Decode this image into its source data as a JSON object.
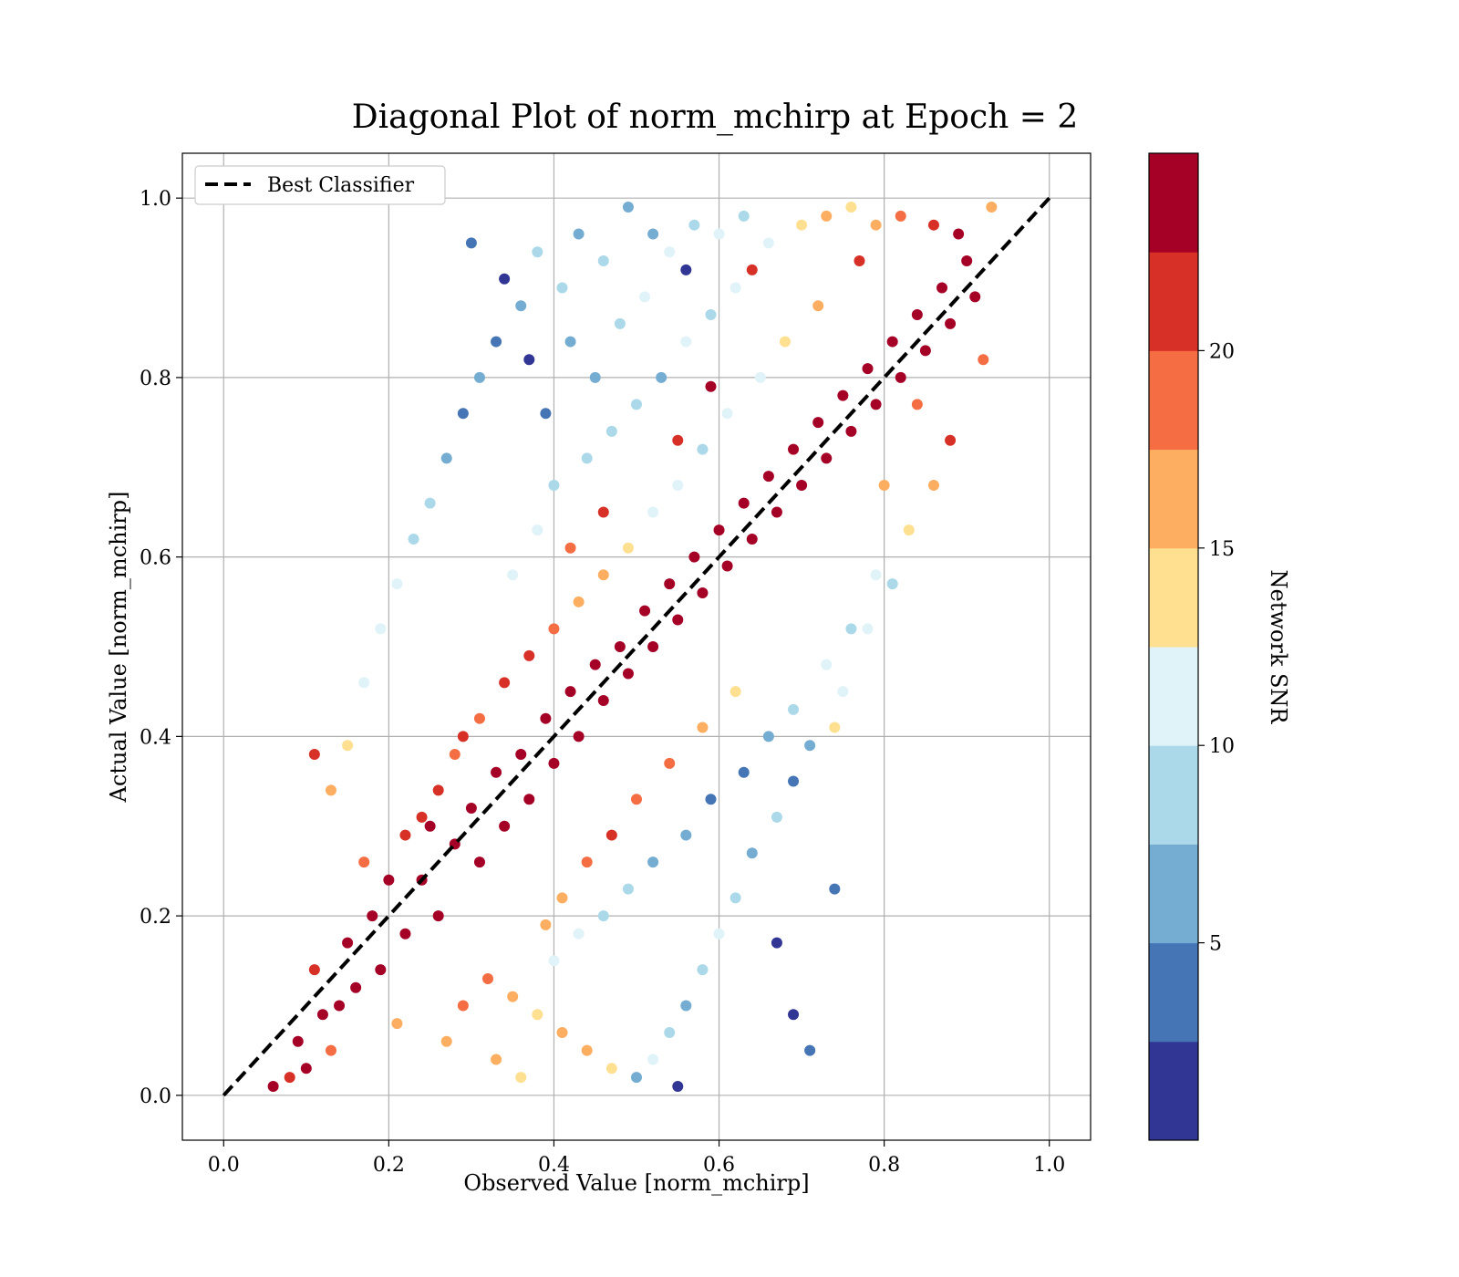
{
  "chart_data": {
    "type": "scatter",
    "title": "Diagonal Plot of norm_mchirp at Epoch = 2",
    "xlabel": "Observed Value [norm_mchirp]",
    "ylabel": "Actual Value [norm_mchirp]",
    "xlim": [
      -0.05,
      1.05
    ],
    "ylim": [
      -0.05,
      1.05
    ],
    "xticks": [
      "0.0",
      "0.2",
      "0.4",
      "0.6",
      "0.8",
      "1.0"
    ],
    "yticks": [
      "0.0",
      "0.2",
      "0.4",
      "0.6",
      "0.8",
      "1.0"
    ],
    "grid": true,
    "legend": {
      "placement": "upper-left",
      "entries": [
        "Best Classifier"
      ]
    },
    "reference_line": {
      "name": "Best Classifier",
      "style": "dashed",
      "color": "#000000",
      "x": [
        0,
        1
      ],
      "y": [
        0,
        1
      ]
    },
    "colorbar": {
      "label": "Network SNR",
      "range": [
        0,
        25
      ],
      "ticks": [
        "5",
        "10",
        "15",
        "20"
      ],
      "colors": [
        "#313695",
        "#4575b4",
        "#74add1",
        "#abd9e9",
        "#e0f3f8",
        "#fee090",
        "#fdae61",
        "#f46d43",
        "#d73027",
        "#a50026"
      ]
    },
    "points": [
      [
        0.06,
        0.01,
        24
      ],
      [
        0.08,
        0.02,
        22
      ],
      [
        0.09,
        0.06,
        24
      ],
      [
        0.1,
        0.03,
        23
      ],
      [
        0.12,
        0.09,
        24
      ],
      [
        0.11,
        0.14,
        20
      ],
      [
        0.14,
        0.1,
        24
      ],
      [
        0.15,
        0.17,
        24
      ],
      [
        0.13,
        0.05,
        18
      ],
      [
        0.16,
        0.12,
        24
      ],
      [
        0.18,
        0.2,
        24
      ],
      [
        0.19,
        0.14,
        24
      ],
      [
        0.2,
        0.24,
        24
      ],
      [
        0.17,
        0.26,
        18
      ],
      [
        0.22,
        0.18,
        24
      ],
      [
        0.24,
        0.24,
        24
      ],
      [
        0.25,
        0.3,
        24
      ],
      [
        0.21,
        0.08,
        16
      ],
      [
        0.26,
        0.2,
        24
      ],
      [
        0.28,
        0.28,
        24
      ],
      [
        0.3,
        0.32,
        24
      ],
      [
        0.31,
        0.26,
        24
      ],
      [
        0.33,
        0.36,
        24
      ],
      [
        0.29,
        0.4,
        20
      ],
      [
        0.34,
        0.3,
        24
      ],
      [
        0.36,
        0.38,
        24
      ],
      [
        0.37,
        0.33,
        24
      ],
      [
        0.39,
        0.42,
        24
      ],
      [
        0.4,
        0.37,
        24
      ],
      [
        0.42,
        0.45,
        24
      ],
      [
        0.43,
        0.4,
        24
      ],
      [
        0.45,
        0.48,
        24
      ],
      [
        0.46,
        0.44,
        24
      ],
      [
        0.48,
        0.5,
        24
      ],
      [
        0.49,
        0.47,
        24
      ],
      [
        0.51,
        0.54,
        24
      ],
      [
        0.52,
        0.5,
        24
      ],
      [
        0.54,
        0.57,
        24
      ],
      [
        0.55,
        0.53,
        24
      ],
      [
        0.57,
        0.6,
        24
      ],
      [
        0.58,
        0.56,
        24
      ],
      [
        0.6,
        0.63,
        24
      ],
      [
        0.61,
        0.59,
        24
      ],
      [
        0.63,
        0.66,
        24
      ],
      [
        0.64,
        0.62,
        24
      ],
      [
        0.66,
        0.69,
        24
      ],
      [
        0.67,
        0.65,
        24
      ],
      [
        0.69,
        0.72,
        24
      ],
      [
        0.7,
        0.68,
        24
      ],
      [
        0.72,
        0.75,
        24
      ],
      [
        0.73,
        0.71,
        24
      ],
      [
        0.75,
        0.78,
        24
      ],
      [
        0.76,
        0.74,
        24
      ],
      [
        0.78,
        0.81,
        24
      ],
      [
        0.79,
        0.77,
        24
      ],
      [
        0.81,
        0.84,
        24
      ],
      [
        0.82,
        0.8,
        24
      ],
      [
        0.84,
        0.87,
        24
      ],
      [
        0.85,
        0.83,
        24
      ],
      [
        0.87,
        0.9,
        24
      ],
      [
        0.88,
        0.86,
        24
      ],
      [
        0.9,
        0.93,
        24
      ],
      [
        0.89,
        0.96,
        24
      ],
      [
        0.91,
        0.89,
        24
      ],
      [
        0.86,
        0.97,
        22
      ],
      [
        0.93,
        0.99,
        17
      ],
      [
        0.92,
        0.82,
        19
      ],
      [
        0.88,
        0.73,
        20
      ],
      [
        0.86,
        0.68,
        15
      ],
      [
        0.83,
        0.63,
        14
      ],
      [
        0.79,
        0.58,
        12
      ],
      [
        0.76,
        0.52,
        9
      ],
      [
        0.73,
        0.48,
        11
      ],
      [
        0.74,
        0.41,
        13
      ],
      [
        0.71,
        0.39,
        7
      ],
      [
        0.69,
        0.35,
        3
      ],
      [
        0.67,
        0.31,
        8
      ],
      [
        0.64,
        0.27,
        6
      ],
      [
        0.62,
        0.22,
        9
      ],
      [
        0.6,
        0.18,
        11
      ],
      [
        0.58,
        0.14,
        8
      ],
      [
        0.56,
        0.1,
        5
      ],
      [
        0.54,
        0.07,
        9
      ],
      [
        0.52,
        0.04,
        11
      ],
      [
        0.5,
        0.02,
        7
      ],
      [
        0.55,
        0.01,
        2
      ],
      [
        0.47,
        0.03,
        13
      ],
      [
        0.44,
        0.05,
        15
      ],
      [
        0.41,
        0.07,
        17
      ],
      [
        0.38,
        0.09,
        14
      ],
      [
        0.35,
        0.11,
        16
      ],
      [
        0.32,
        0.13,
        18
      ],
      [
        0.29,
        0.1,
        19
      ],
      [
        0.27,
        0.06,
        16
      ],
      [
        0.33,
        0.04,
        15
      ],
      [
        0.36,
        0.02,
        13
      ],
      [
        0.4,
        0.15,
        12
      ],
      [
        0.43,
        0.18,
        10
      ],
      [
        0.46,
        0.2,
        9
      ],
      [
        0.49,
        0.23,
        8
      ],
      [
        0.52,
        0.26,
        7
      ],
      [
        0.56,
        0.29,
        5
      ],
      [
        0.59,
        0.33,
        4
      ],
      [
        0.63,
        0.36,
        3
      ],
      [
        0.66,
        0.4,
        6
      ],
      [
        0.69,
        0.43,
        9
      ],
      [
        0.62,
        0.45,
        14
      ],
      [
        0.58,
        0.41,
        16
      ],
      [
        0.54,
        0.37,
        18
      ],
      [
        0.5,
        0.33,
        19
      ],
      [
        0.47,
        0.29,
        20
      ],
      [
        0.44,
        0.26,
        19
      ],
      [
        0.41,
        0.22,
        17
      ],
      [
        0.39,
        0.19,
        15
      ],
      [
        0.71,
        0.05,
        4
      ],
      [
        0.69,
        0.09,
        1
      ],
      [
        0.74,
        0.23,
        4
      ],
      [
        0.67,
        0.17,
        2
      ],
      [
        0.78,
        0.52,
        10
      ],
      [
        0.75,
        0.45,
        12
      ],
      [
        0.81,
        0.57,
        9
      ],
      [
        0.8,
        0.68,
        16
      ],
      [
        0.84,
        0.77,
        19
      ],
      [
        0.56,
        0.92,
        1
      ],
      [
        0.52,
        0.96,
        6
      ],
      [
        0.49,
        0.99,
        7
      ],
      [
        0.46,
        0.93,
        8
      ],
      [
        0.43,
        0.96,
        5
      ],
      [
        0.41,
        0.9,
        9
      ],
      [
        0.38,
        0.94,
        8
      ],
      [
        0.36,
        0.88,
        7
      ],
      [
        0.33,
        0.84,
        3
      ],
      [
        0.31,
        0.8,
        6
      ],
      [
        0.29,
        0.76,
        4
      ],
      [
        0.27,
        0.71,
        7
      ],
      [
        0.25,
        0.66,
        8
      ],
      [
        0.23,
        0.62,
        9
      ],
      [
        0.21,
        0.57,
        10
      ],
      [
        0.19,
        0.52,
        12
      ],
      [
        0.17,
        0.46,
        11
      ],
      [
        0.15,
        0.39,
        13
      ],
      [
        0.13,
        0.34,
        15
      ],
      [
        0.11,
        0.38,
        20
      ],
      [
        0.3,
        0.95,
        4
      ],
      [
        0.34,
        0.91,
        2
      ],
      [
        0.37,
        0.82,
        1
      ],
      [
        0.39,
        0.76,
        3
      ],
      [
        0.42,
        0.84,
        6
      ],
      [
        0.45,
        0.8,
        7
      ],
      [
        0.48,
        0.86,
        9
      ],
      [
        0.51,
        0.89,
        10
      ],
      [
        0.54,
        0.94,
        11
      ],
      [
        0.57,
        0.97,
        8
      ],
      [
        0.6,
        0.96,
        12
      ],
      [
        0.63,
        0.98,
        9
      ],
      [
        0.66,
        0.95,
        11
      ],
      [
        0.7,
        0.97,
        13
      ],
      [
        0.73,
        0.98,
        15
      ],
      [
        0.76,
        0.99,
        13
      ],
      [
        0.79,
        0.97,
        17
      ],
      [
        0.82,
        0.98,
        19
      ],
      [
        0.77,
        0.93,
        21
      ],
      [
        0.72,
        0.88,
        16
      ],
      [
        0.68,
        0.84,
        14
      ],
      [
        0.65,
        0.8,
        12
      ],
      [
        0.61,
        0.76,
        11
      ],
      [
        0.58,
        0.72,
        9
      ],
      [
        0.55,
        0.68,
        10
      ],
      [
        0.52,
        0.65,
        12
      ],
      [
        0.49,
        0.61,
        14
      ],
      [
        0.46,
        0.58,
        15
      ],
      [
        0.43,
        0.55,
        17
      ],
      [
        0.4,
        0.52,
        18
      ],
      [
        0.37,
        0.49,
        20
      ],
      [
        0.34,
        0.46,
        21
      ],
      [
        0.31,
        0.42,
        19
      ],
      [
        0.28,
        0.38,
        18
      ],
      [
        0.26,
        0.34,
        20
      ],
      [
        0.24,
        0.31,
        21
      ],
      [
        0.22,
        0.29,
        22
      ],
      [
        0.35,
        0.58,
        12
      ],
      [
        0.38,
        0.63,
        10
      ],
      [
        0.4,
        0.68,
        9
      ],
      [
        0.44,
        0.71,
        8
      ],
      [
        0.47,
        0.74,
        9
      ],
      [
        0.5,
        0.77,
        8
      ],
      [
        0.53,
        0.8,
        7
      ],
      [
        0.56,
        0.84,
        10
      ],
      [
        0.59,
        0.87,
        9
      ],
      [
        0.62,
        0.9,
        11
      ],
      [
        0.64,
        0.92,
        21
      ],
      [
        0.59,
        0.79,
        24
      ],
      [
        0.55,
        0.73,
        22
      ],
      [
        0.46,
        0.65,
        20
      ],
      [
        0.42,
        0.61,
        19
      ]
    ]
  }
}
